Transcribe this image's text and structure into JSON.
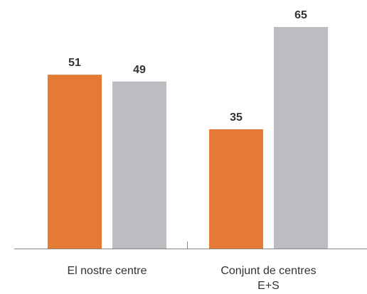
{
  "chart_data": {
    "type": "bar",
    "categories": [
      "El nostre centre",
      "Conjunt de centres E+S"
    ],
    "series": [
      {
        "color": "#e57a34",
        "values": [
          51,
          35
        ]
      },
      {
        "color": "#bcbdc0",
        "values": [
          49,
          65
        ]
      }
    ],
    "ylim": [
      0,
      65
    ]
  }
}
